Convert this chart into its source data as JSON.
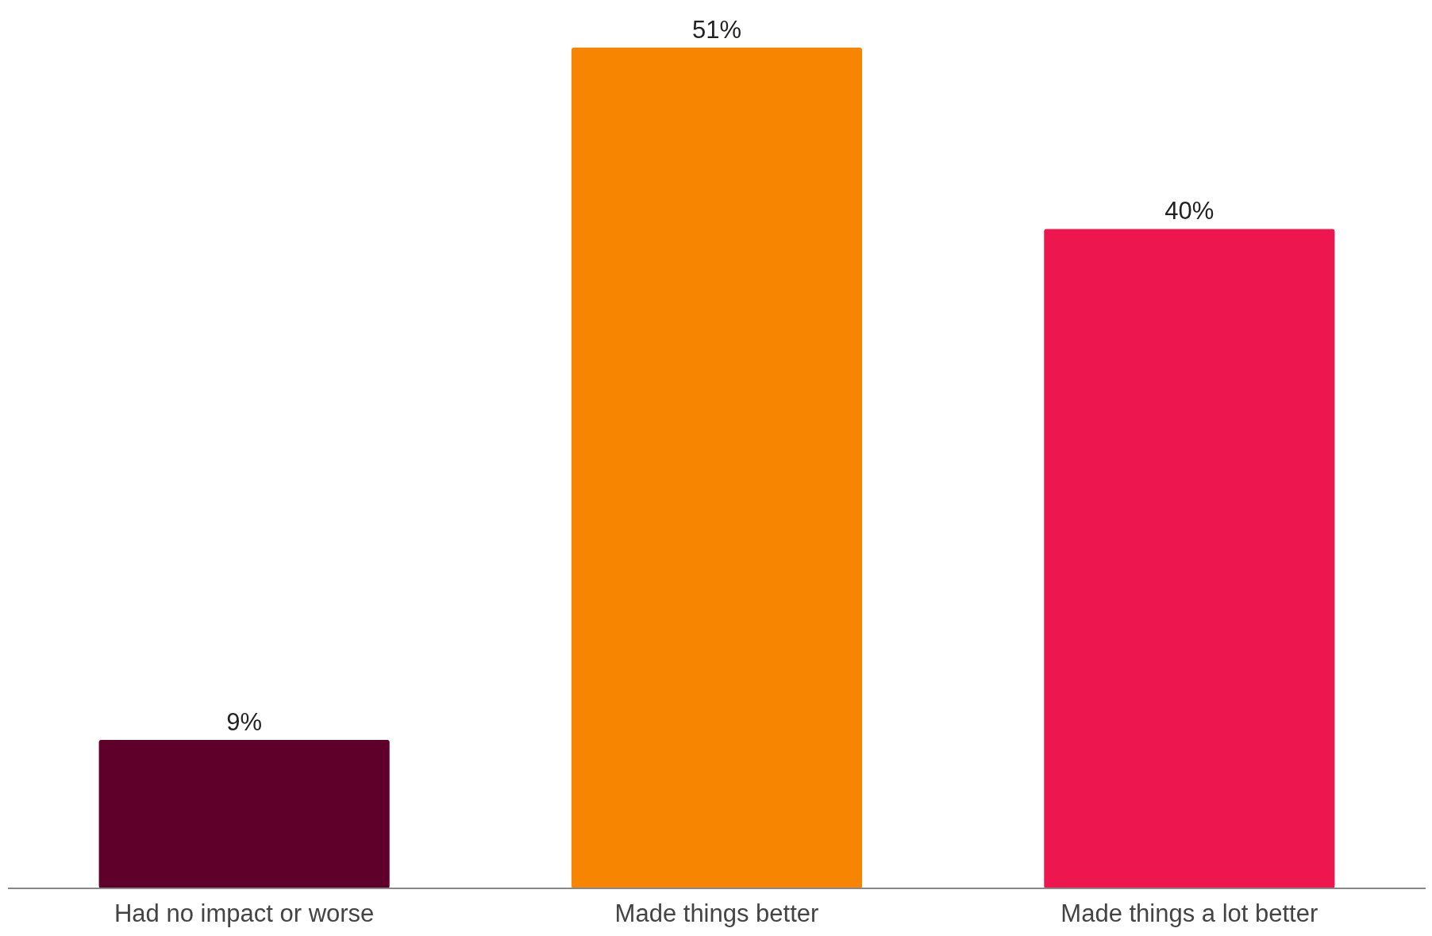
{
  "chart_data": {
    "type": "bar",
    "categories": [
      "Had no impact or worse",
      "Made things better",
      "Made things a lot better"
    ],
    "values": [
      9,
      51,
      40
    ],
    "colors": [
      "#5e0029",
      "#f78502",
      "#ed164f"
    ],
    "data_labels": true,
    "value_labels": [
      "9%",
      "51%",
      "40%"
    ]
  }
}
